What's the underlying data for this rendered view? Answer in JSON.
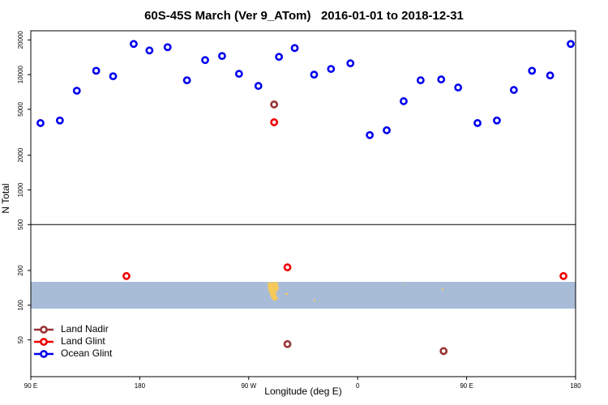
{
  "chart_data": {
    "type": "scatter",
    "title": "60S-45S March (Ver 9_ATom)   2016-01-01 to 2018-12-31",
    "xlabel": "Longitude (deg E)",
    "ylabel": "N Total",
    "xlim": [
      90,
      540
    ],
    "xticks": [
      {
        "value": 90,
        "label": "90 E"
      },
      180,
      {
        "value": 270,
        "label": "90 W"
      },
      {
        "value": 360,
        "label": "0"
      },
      {
        "value": 450,
        "label": "90 E"
      },
      {
        "value": 540,
        "label": "180"
      }
    ],
    "ylim": [
      24,
      24000
    ],
    "yticks": [
      50,
      100,
      200,
      500,
      1000,
      2000,
      5000,
      10000,
      20000
    ],
    "ylog": true,
    "hline": 500,
    "legend": "lower left",
    "series": [
      {
        "name": "Land Nadir",
        "color": "#993333",
        "x": [
          291,
          302,
          431
        ],
        "values": [
          5510,
          46,
          40
        ]
      },
      {
        "name": "Land Glint",
        "color": "#ee0000",
        "x": [
          291,
          169,
          302,
          530
        ],
        "values": [
          3860,
          179,
          213,
          179
        ]
      },
      {
        "name": "Ocean Glint",
        "color": "#0000ee",
        "x": [
          98,
          114,
          128,
          144,
          158,
          175,
          188,
          203,
          219,
          234,
          248,
          262,
          278,
          295,
          308,
          324,
          338,
          354,
          370,
          384,
          398,
          412,
          429,
          443,
          459,
          475,
          489,
          504,
          519,
          536
        ],
        "values": [
          3800,
          4000,
          7250,
          10800,
          9680,
          18450,
          16200,
          17300,
          8930,
          13360,
          14500,
          10160,
          7980,
          14260,
          17000,
          10000,
          11200,
          12530,
          2990,
          3290,
          5880,
          8930,
          9080,
          7730,
          3800,
          4000,
          7360,
          10800,
          9840,
          18450
        ]
      }
    ]
  }
}
